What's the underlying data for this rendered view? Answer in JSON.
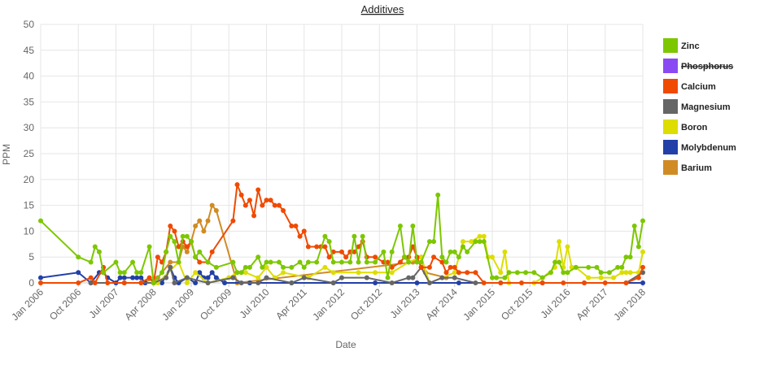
{
  "chart_data": {
    "type": "line",
    "title": "Additives",
    "xlabel": "Date",
    "ylabel": "PPM",
    "xlim": [
      "2006-01",
      "2018-01"
    ],
    "ylim": [
      0,
      50
    ],
    "yticks": [
      0,
      5,
      10,
      15,
      20,
      25,
      30,
      35,
      40,
      45,
      50
    ],
    "xticks": [
      {
        "value": "2006-01",
        "label": "Jan 2006"
      },
      {
        "value": "2006-10",
        "label": "Oct 2006"
      },
      {
        "value": "2007-07",
        "label": "Jul 2007"
      },
      {
        "value": "2008-04",
        "label": "Apr 2008"
      },
      {
        "value": "2009-01",
        "label": "Jan 2009"
      },
      {
        "value": "2009-10",
        "label": "Oct 2009"
      },
      {
        "value": "2010-07",
        "label": "Jul 2010"
      },
      {
        "value": "2011-04",
        "label": "Apr 2011"
      },
      {
        "value": "2012-01",
        "label": "Jan 2012"
      },
      {
        "value": "2012-10",
        "label": "Oct 2012"
      },
      {
        "value": "2013-07",
        "label": "Jul 2013"
      },
      {
        "value": "2014-04",
        "label": "Apr 2014"
      },
      {
        "value": "2015-01",
        "label": "Jan 2015"
      },
      {
        "value": "2015-10",
        "label": "Oct 2015"
      },
      {
        "value": "2016-07",
        "label": "Jul 2016"
      },
      {
        "value": "2017-04",
        "label": "Apr 2017"
      },
      {
        "value": "2018-01",
        "label": "Jan 2018"
      }
    ],
    "grid": true,
    "legend": "right",
    "series": [
      {
        "name": "Zinc",
        "color": "#7cc700",
        "x": [
          "2006-01",
          "2006-10",
          "2007-01",
          "2007-02",
          "2007-03",
          "2007-04",
          "2007-07",
          "2007-08",
          "2007-09",
          "2007-11",
          "2007-12",
          "2008-01",
          "2008-03",
          "2008-04",
          "2008-06",
          "2008-07",
          "2008-08",
          "2008-09",
          "2008-10",
          "2008-11",
          "2008-12",
          "2009-01",
          "2009-02",
          "2009-03",
          "2009-05",
          "2009-07",
          "2009-11",
          "2009-12",
          "2010-01",
          "2010-02",
          "2010-03",
          "2010-05",
          "2010-06",
          "2010-07",
          "2010-08",
          "2010-10",
          "2010-11",
          "2011-01",
          "2011-03",
          "2011-04",
          "2011-05",
          "2011-07",
          "2011-09",
          "2011-10",
          "2011-11",
          "2012-01",
          "2012-03",
          "2012-04",
          "2012-05",
          "2012-06",
          "2012-07",
          "2012-09",
          "2012-11",
          "2012-12",
          "2013-01",
          "2013-03",
          "2013-04",
          "2013-05",
          "2013-06",
          "2013-07",
          "2013-08",
          "2013-10",
          "2013-11",
          "2013-12",
          "2014-01",
          "2014-02",
          "2014-03",
          "2014-04",
          "2014-05",
          "2014-06",
          "2014-07",
          "2014-09",
          "2014-10",
          "2014-11",
          "2015-01",
          "2015-02",
          "2015-04",
          "2015-05",
          "2015-07",
          "2015-09",
          "2015-11",
          "2016-01",
          "2016-03",
          "2016-04",
          "2016-05",
          "2016-06",
          "2016-07",
          "2016-09",
          "2016-12",
          "2017-02",
          "2017-03",
          "2017-05",
          "2017-07",
          "2017-08",
          "2017-09",
          "2017-10",
          "2017-11",
          "2017-12",
          "2018-01"
        ],
        "values": [
          12,
          5,
          4,
          7,
          6,
          2,
          4,
          2,
          2,
          4,
          2,
          2,
          7,
          0,
          2,
          6,
          9,
          8,
          4,
          9,
          9,
          8,
          5,
          6,
          4,
          3,
          4,
          2,
          2,
          3,
          3,
          5,
          3,
          4,
          4,
          4,
          3,
          3,
          4,
          3,
          4,
          4,
          9,
          8,
          4,
          4,
          4,
          9,
          4,
          9,
          4,
          4,
          6,
          1,
          6,
          11,
          5,
          4,
          11,
          4,
          4,
          8,
          8,
          17,
          5,
          4,
          6,
          6,
          5,
          7,
          6,
          8,
          8,
          8,
          1,
          1,
          1,
          2,
          2,
          2,
          2,
          1,
          2,
          4,
          4,
          2,
          2,
          3,
          3,
          3,
          2,
          2,
          3,
          3,
          5,
          5,
          11,
          7,
          12
        ]
      },
      {
        "name": "Phosphorus",
        "color": "#8a4af3",
        "hidden": true,
        "x": [],
        "values": []
      },
      {
        "name": "Calcium",
        "color": "#f04a00",
        "x": [
          "2006-01",
          "2006-10",
          "2007-01",
          "2007-02",
          "2007-04",
          "2007-05",
          "2007-09",
          "2008-01",
          "2008-03",
          "2008-04",
          "2008-05",
          "2008-06",
          "2008-07",
          "2008-08",
          "2008-09",
          "2008-10",
          "2008-11",
          "2008-12",
          "2009-01",
          "2009-02",
          "2009-03",
          "2009-05",
          "2009-06",
          "2009-11",
          "2009-12",
          "2010-01",
          "2010-02",
          "2010-03",
          "2010-04",
          "2010-05",
          "2010-06",
          "2010-07",
          "2010-08",
          "2010-09",
          "2010-10",
          "2010-11",
          "2011-01",
          "2011-02",
          "2011-03",
          "2011-04",
          "2011-05",
          "2011-07",
          "2011-08",
          "2011-09",
          "2011-10",
          "2011-11",
          "2012-01",
          "2012-02",
          "2012-03",
          "2012-04",
          "2012-05",
          "2012-06",
          "2012-07",
          "2012-09",
          "2012-11",
          "2012-12",
          "2013-01",
          "2013-03",
          "2013-04",
          "2013-05",
          "2013-06",
          "2013-07",
          "2013-08",
          "2013-10",
          "2013-11",
          "2014-01",
          "2014-02",
          "2014-03",
          "2014-04",
          "2014-05",
          "2014-07",
          "2014-09",
          "2014-11",
          "2015-03",
          "2015-08",
          "2016-01",
          "2016-06",
          "2016-11",
          "2017-04",
          "2017-09",
          "2017-12",
          "2018-01"
        ],
        "values": [
          0,
          0,
          1,
          0,
          3,
          0,
          0,
          0,
          1,
          0,
          5,
          4,
          6,
          11,
          10,
          7,
          8,
          7,
          8,
          5,
          4,
          4,
          6,
          12,
          19,
          17,
          15,
          16,
          13,
          18,
          15,
          16,
          16,
          15,
          15,
          14,
          11,
          11,
          9,
          10,
          7,
          7,
          7,
          7,
          5,
          6,
          6,
          5,
          6,
          6,
          7,
          8,
          5,
          5,
          4,
          4,
          3,
          4,
          5,
          5,
          7,
          5,
          3,
          3,
          5,
          4,
          2,
          3,
          3,
          2,
          2,
          2,
          0,
          0,
          0,
          0,
          0,
          0,
          0,
          0,
          1,
          3
        ]
      },
      {
        "name": "Magnesium",
        "color": "#666666",
        "x": [
          "2007-01",
          "2007-09",
          "2008-04",
          "2008-07",
          "2008-08",
          "2008-09",
          "2008-12",
          "2009-05",
          "2009-11",
          "2010-01",
          "2010-05",
          "2010-07",
          "2011-01",
          "2011-04",
          "2011-11",
          "2012-01",
          "2012-07",
          "2013-01",
          "2013-05",
          "2013-06",
          "2013-08",
          "2013-10",
          "2014-01",
          "2014-04",
          "2014-09",
          "2015-03",
          "2016-01",
          "2016-11",
          "2017-09",
          "2018-01"
        ],
        "values": [
          0,
          0,
          0,
          1,
          3,
          0,
          1,
          0,
          1,
          0,
          0,
          1,
          0,
          1,
          0,
          1,
          1,
          0,
          1,
          1,
          3,
          0,
          1,
          1,
          0,
          0,
          0,
          0,
          0,
          2
        ]
      },
      {
        "name": "Boron",
        "color": "#dddd00",
        "x": [
          "2008-05",
          "2008-10",
          "2008-12",
          "2009-02",
          "2009-05",
          "2009-10",
          "2009-12",
          "2010-02",
          "2010-05",
          "2010-07",
          "2010-09",
          "2010-11",
          "2011-05",
          "2011-09",
          "2011-11",
          "2012-05",
          "2012-09",
          "2013-01",
          "2013-05",
          "2013-08",
          "2013-10",
          "2014-01",
          "2014-04",
          "2014-06",
          "2014-08",
          "2014-10",
          "2014-11",
          "2014-12",
          "2015-01",
          "2015-03",
          "2015-04",
          "2015-05",
          "2015-11",
          "2016-01",
          "2016-04",
          "2016-05",
          "2016-06",
          "2016-07",
          "2016-08",
          "2016-09",
          "2016-12",
          "2017-03",
          "2017-06",
          "2017-08",
          "2017-09",
          "2017-10",
          "2017-12",
          "2018-01"
        ],
        "values": [
          0,
          4,
          0,
          2,
          0,
          1,
          2,
          2,
          1,
          3,
          1,
          2,
          1,
          3,
          2,
          2,
          2,
          2,
          4,
          5,
          0,
          1,
          2,
          8,
          8,
          9,
          9,
          5,
          5,
          2,
          6,
          0,
          0,
          1,
          3,
          8,
          3,
          7,
          3,
          3,
          1,
          1,
          1,
          2,
          2,
          2,
          2,
          6
        ]
      },
      {
        "name": "Molybdenum",
        "color": "#2240a8",
        "x": [
          "2006-01",
          "2006-10",
          "2007-01",
          "2007-03",
          "2007-04",
          "2007-05",
          "2007-07",
          "2007-08",
          "2007-09",
          "2007-11",
          "2007-12",
          "2008-01",
          "2008-02",
          "2008-06",
          "2008-08",
          "2008-09",
          "2008-10",
          "2008-12",
          "2009-02",
          "2009-03",
          "2009-04",
          "2009-05",
          "2009-06",
          "2009-07",
          "2009-09",
          "2010-03",
          "2011-01",
          "2011-11",
          "2012-09",
          "2013-07",
          "2014-05",
          "2018-01"
        ],
        "values": [
          1,
          2,
          0,
          2,
          2,
          1,
          0,
          1,
          1,
          1,
          1,
          1,
          0,
          0,
          3,
          1,
          0,
          1,
          0,
          2,
          1,
          1,
          2,
          1,
          0,
          0,
          0,
          0,
          0,
          0,
          0,
          0
        ]
      },
      {
        "name": "Barium",
        "color": "#d08b25",
        "x": [
          "2008-01",
          "2008-05",
          "2008-08",
          "2008-10",
          "2008-11",
          "2008-12",
          "2009-01",
          "2009-02",
          "2009-03",
          "2009-04",
          "2009-05",
          "2009-06",
          "2009-07",
          "2009-12",
          "2013-06",
          "2013-08",
          "2013-09",
          "2014-02"
        ],
        "values": [
          0,
          1,
          4,
          4,
          7,
          6,
          8,
          11,
          12,
          10,
          12,
          15,
          14,
          0,
          4,
          5,
          2,
          1
        ]
      }
    ]
  }
}
